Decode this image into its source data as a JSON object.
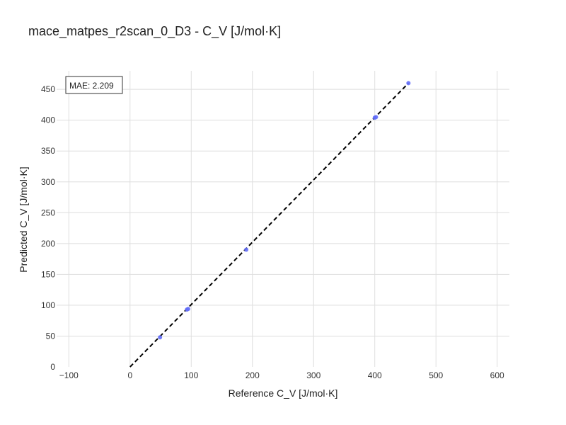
{
  "chart_data": {
    "type": "scatter",
    "title": "mace_matpes_r2scan_0_D3 - C_V [J/mol·K]",
    "xlabel": "Reference C_V [J/mol·K]",
    "ylabel": "Predicted C_V [J/mol·K]",
    "xlim": [
      -120,
      620
    ],
    "ylim": [
      0,
      480
    ],
    "xticks": [
      -100,
      0,
      100,
      200,
      300,
      400,
      500,
      600
    ],
    "yticks": [
      0,
      50,
      100,
      150,
      200,
      250,
      300,
      350,
      400,
      450
    ],
    "xtick_labels": [
      "−100",
      "0",
      "100",
      "200",
      "300",
      "400",
      "500",
      "600"
    ],
    "ytick_labels": [
      "0",
      "50",
      "100",
      "150",
      "200",
      "250",
      "300",
      "350",
      "400",
      "450"
    ],
    "grid": true,
    "annotation": "MAE: 2.209",
    "reference_line": {
      "style": "dashed",
      "color": "#000000",
      "x": [
        0,
        455
      ],
      "y": [
        0,
        460
      ]
    },
    "series": [
      {
        "color": "#636efa",
        "points": [
          {
            "x": 49,
            "y": 48
          },
          {
            "x": 93,
            "y": 93
          },
          {
            "x": 95,
            "y": 94
          },
          {
            "x": 190,
            "y": 190
          },
          {
            "x": 400,
            "y": 404
          },
          {
            "x": 402,
            "y": 405
          },
          {
            "x": 455,
            "y": 460
          }
        ]
      }
    ]
  }
}
